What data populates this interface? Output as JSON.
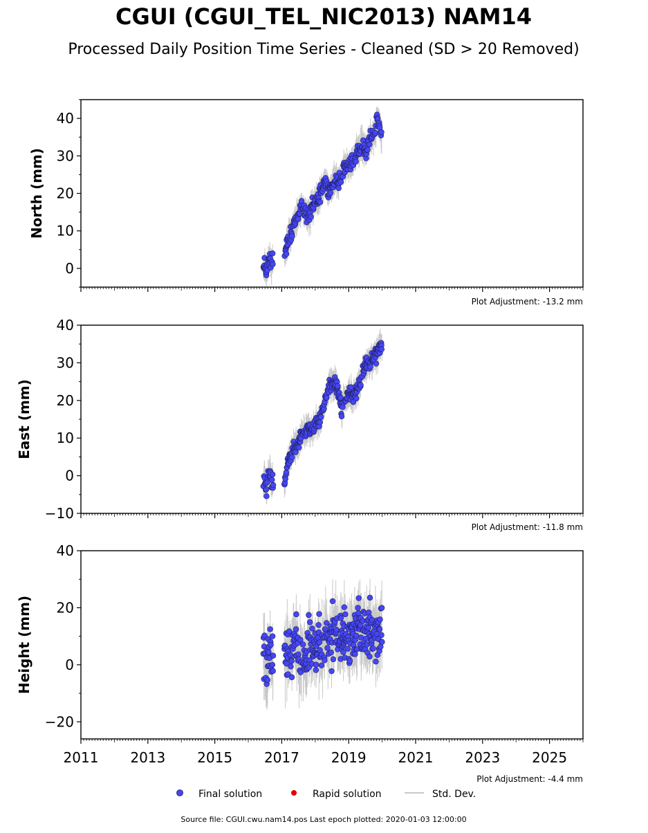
{
  "title": "CGUI (CGUI_TEL_NIC2013) NAM14",
  "subtitle": "Processed Daily Position Time Series - Cleaned (SD > 20 Removed)",
  "colors": {
    "final": "#4646f5",
    "rapid": "#e00000",
    "stddev": "#c8c8c8",
    "edge": "#1e1e5a"
  },
  "legend": {
    "final": "Final solution",
    "rapid": "Rapid solution",
    "stddev": "Std. Dev."
  },
  "source_note": "Source file: CGUI.cwu.nam14.pos  Last epoch plotted: 2020-01-03 12:00:00",
  "chart_data": [
    {
      "type": "scatter",
      "ylabel": "North (mm)",
      "adjustment": "Plot Adjustment: -13.2 mm",
      "xlim": [
        2011,
        2026
      ],
      "ylim": [
        -5,
        45
      ],
      "yticks": [
        0,
        10,
        20,
        30,
        40
      ],
      "ytick_labels": [
        "0",
        "10",
        "20",
        "30",
        "40"
      ],
      "legend_position": "below",
      "series": [
        {
          "points": [
            [
              2016.45,
              0.0
            ],
            [
              2016.5,
              1.0
            ],
            [
              2016.55,
              -1.0
            ],
            [
              2016.6,
              2.0
            ],
            [
              2016.65,
              3.0
            ],
            [
              2016.7,
              1.0
            ],
            [
              2017.1,
              3.0
            ],
            [
              2017.15,
              6.0
            ],
            [
              2017.2,
              8.0
            ],
            [
              2017.3,
              10.0
            ],
            [
              2017.4,
              12.0
            ],
            [
              2017.5,
              14.0
            ],
            [
              2017.6,
              16.0
            ],
            [
              2017.7,
              15.0
            ],
            [
              2017.8,
              14.0
            ],
            [
              2017.9,
              16.0
            ],
            [
              2018.0,
              18.0
            ],
            [
              2018.1,
              19.0
            ],
            [
              2018.2,
              21.0
            ],
            [
              2018.3,
              23.0
            ],
            [
              2018.4,
              20.0
            ],
            [
              2018.5,
              22.0
            ],
            [
              2018.6,
              24.0
            ],
            [
              2018.7,
              23.0
            ],
            [
              2018.8,
              25.0
            ],
            [
              2018.9,
              28.0
            ],
            [
              2019.0,
              27.0
            ],
            [
              2019.1,
              28.0
            ],
            [
              2019.2,
              30.0
            ],
            [
              2019.3,
              32.0
            ],
            [
              2019.4,
              33.0
            ],
            [
              2019.5,
              31.0
            ],
            [
              2019.6,
              34.0
            ],
            [
              2019.7,
              35.0
            ],
            [
              2019.8,
              36.0
            ],
            [
              2019.85,
              40.0
            ],
            [
              2019.95,
              37.0
            ],
            [
              2020.0,
              35.0
            ]
          ],
          "band_sd": 3.0
        }
      ]
    },
    {
      "type": "scatter",
      "ylabel": "East (mm)",
      "adjustment": "Plot Adjustment: -11.8 mm",
      "xlim": [
        2011,
        2026
      ],
      "ylim": [
        -10,
        40
      ],
      "yticks": [
        -10,
        0,
        10,
        20,
        30,
        40
      ],
      "ytick_labels": [
        "−10",
        "0",
        "10",
        "20",
        "30",
        "40"
      ],
      "series": [
        {
          "points": [
            [
              2016.45,
              -2.0
            ],
            [
              2016.5,
              0.0
            ],
            [
              2016.55,
              -3.0
            ],
            [
              2016.6,
              -1.0
            ],
            [
              2016.65,
              1.0
            ],
            [
              2016.7,
              -2.0
            ],
            [
              2017.1,
              -2.0
            ],
            [
              2017.15,
              2.0
            ],
            [
              2017.2,
              4.0
            ],
            [
              2017.3,
              6.0
            ],
            [
              2017.4,
              8.0
            ],
            [
              2017.5,
              9.0
            ],
            [
              2017.6,
              11.0
            ],
            [
              2017.7,
              12.0
            ],
            [
              2017.8,
              13.0
            ],
            [
              2017.9,
              12.0
            ],
            [
              2018.0,
              13.0
            ],
            [
              2018.1,
              14.0
            ],
            [
              2018.2,
              16.0
            ],
            [
              2018.3,
              20.0
            ],
            [
              2018.4,
              24.0
            ],
            [
              2018.5,
              25.0
            ],
            [
              2018.6,
              24.0
            ],
            [
              2018.7,
              22.0
            ],
            [
              2018.8,
              18.0
            ],
            [
              2018.9,
              20.0
            ],
            [
              2019.0,
              22.0
            ],
            [
              2019.1,
              21.0
            ],
            [
              2019.2,
              22.0
            ],
            [
              2019.3,
              24.0
            ],
            [
              2019.4,
              27.0
            ],
            [
              2019.5,
              29.0
            ],
            [
              2019.6,
              30.0
            ],
            [
              2019.7,
              31.0
            ],
            [
              2019.8,
              32.0
            ],
            [
              2019.9,
              33.0
            ],
            [
              2020.0,
              35.0
            ]
          ],
          "band_sd": 3.0
        }
      ]
    },
    {
      "type": "scatter",
      "ylabel": "Height (mm)",
      "adjustment": "Plot Adjustment: -4.4 mm",
      "xlim": [
        2011,
        2026
      ],
      "ylim": [
        -26,
        40
      ],
      "yticks": [
        -20,
        0,
        20,
        40
      ],
      "ytick_labels": [
        "−20",
        "0",
        "20",
        "40"
      ],
      "xticks": [
        2011,
        2013,
        2015,
        2017,
        2019,
        2021,
        2023,
        2025
      ],
      "xtick_labels": [
        "2011",
        "2013",
        "2015",
        "2017",
        "2019",
        "2021",
        "2023",
        "2025"
      ],
      "series": [
        {
          "points": [
            [
              2016.45,
              5.0
            ],
            [
              2016.5,
              0.0
            ],
            [
              2016.55,
              -5.0
            ],
            [
              2016.6,
              3.0
            ],
            [
              2016.65,
              8.0
            ],
            [
              2016.7,
              2.0
            ],
            [
              2017.1,
              2.0
            ],
            [
              2017.2,
              6.0
            ],
            [
              2017.3,
              4.0
            ],
            [
              2017.4,
              10.0
            ],
            [
              2017.5,
              3.0
            ],
            [
              2017.6,
              5.0
            ],
            [
              2017.7,
              1.0
            ],
            [
              2017.8,
              6.0
            ],
            [
              2017.9,
              8.0
            ],
            [
              2018.0,
              4.0
            ],
            [
              2018.1,
              9.0
            ],
            [
              2018.2,
              7.0
            ],
            [
              2018.3,
              12.0
            ],
            [
              2018.4,
              8.0
            ],
            [
              2018.5,
              10.0
            ],
            [
              2018.6,
              14.0
            ],
            [
              2018.7,
              6.0
            ],
            [
              2018.8,
              10.0
            ],
            [
              2018.9,
              12.0
            ],
            [
              2019.0,
              8.0
            ],
            [
              2019.1,
              11.0
            ],
            [
              2019.2,
              9.0
            ],
            [
              2019.3,
              13.0
            ],
            [
              2019.4,
              10.0
            ],
            [
              2019.5,
              12.0
            ],
            [
              2019.6,
              14.0
            ],
            [
              2019.7,
              11.0
            ],
            [
              2019.8,
              13.0
            ],
            [
              2019.9,
              10.0
            ],
            [
              2020.0,
              12.0
            ]
          ],
          "band_sd": 8.0
        }
      ]
    }
  ]
}
